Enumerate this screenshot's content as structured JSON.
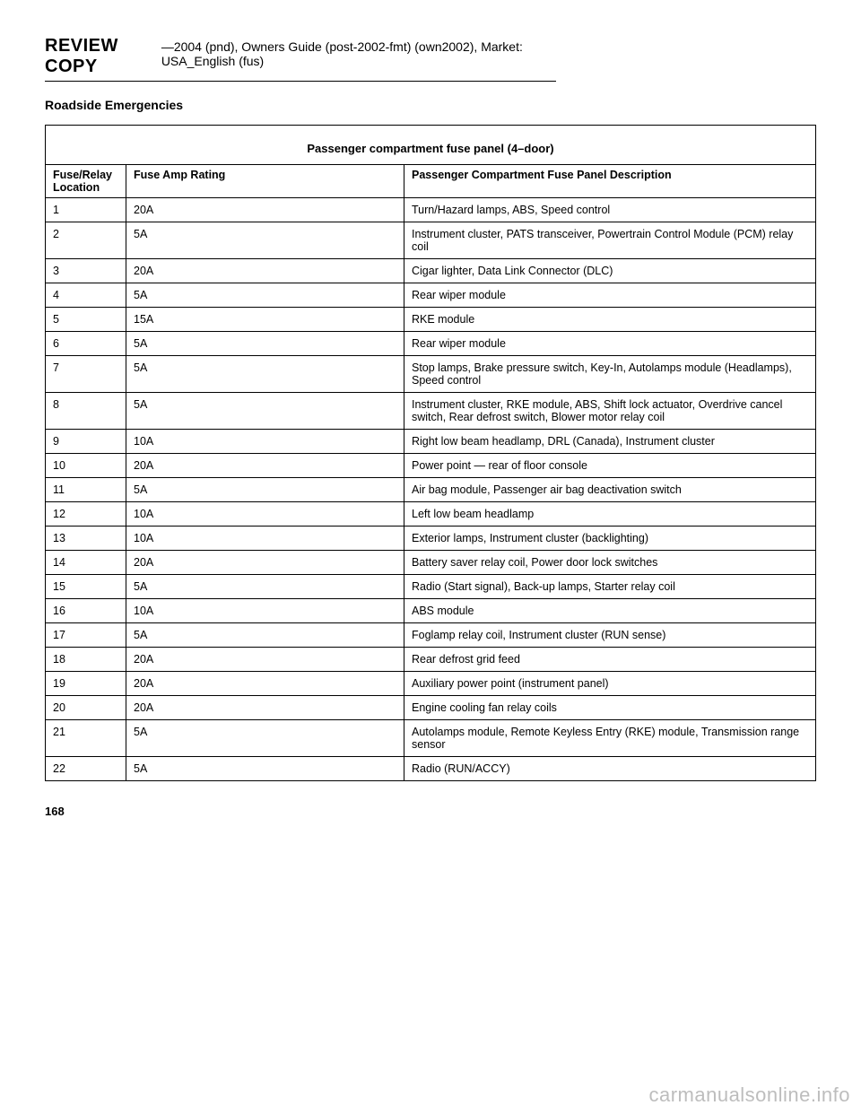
{
  "header": {
    "brand": "REVIEW COPY",
    "sub": "—2004 (pnd), Owners Guide (post-2002-fmt) (own2002), Market: USA_English (fus)"
  },
  "section_title": "Roadside Emergencies",
  "table": {
    "title": "Passenger compartment fuse panel (4–door)",
    "columns": [
      "Fuse/Relay Location",
      "Fuse Amp Rating",
      "Passenger Compartment Fuse Panel Description"
    ],
    "col_widths": [
      "90px",
      "310px",
      "auto"
    ],
    "rows": [
      [
        "1",
        "20A",
        "Turn/Hazard lamps, ABS, Speed control"
      ],
      [
        "2",
        "5A",
        "Instrument cluster, PATS transceiver, Powertrain Control Module (PCM) relay coil"
      ],
      [
        "3",
        "20A",
        "Cigar lighter, Data Link Connector (DLC)"
      ],
      [
        "4",
        "5A",
        "Rear wiper module"
      ],
      [
        "5",
        "15A",
        "RKE module"
      ],
      [
        "6",
        "5A",
        "Rear wiper module"
      ],
      [
        "7",
        "5A",
        "Stop lamps, Brake pressure switch, Key-In, Autolamps module (Headlamps), Speed control"
      ],
      [
        "8",
        "5A",
        "Instrument cluster, RKE module, ABS, Shift lock actuator, Overdrive cancel switch, Rear defrost switch, Blower motor relay coil"
      ],
      [
        "9",
        "10A",
        "Right low beam headlamp, DRL (Canada), Instrument cluster"
      ],
      [
        "10",
        "20A",
        "Power point — rear of floor console"
      ],
      [
        "11",
        "5A",
        "Air bag module, Passenger air bag deactivation switch"
      ],
      [
        "12",
        "10A",
        "Left low beam headlamp"
      ],
      [
        "13",
        "10A",
        "Exterior lamps, Instrument cluster (backlighting)"
      ],
      [
        "14",
        "20A",
        "Battery saver relay coil, Power door lock switches"
      ],
      [
        "15",
        "5A",
        "Radio (Start signal), Back-up lamps, Starter relay coil"
      ],
      [
        "16",
        "10A",
        "ABS module"
      ],
      [
        "17",
        "5A",
        "Foglamp relay coil, Instrument cluster (RUN sense)"
      ],
      [
        "18",
        "20A",
        "Rear defrost grid feed"
      ],
      [
        "19",
        "20A",
        "Auxiliary power point (instrument panel)"
      ],
      [
        "20",
        "20A",
        "Engine cooling fan relay coils"
      ],
      [
        "21",
        "5A",
        "Autolamps module, Remote Keyless Entry (RKE) module, Transmission range sensor"
      ],
      [
        "22",
        "5A",
        "Radio (RUN/ACCY)"
      ]
    ]
  },
  "page_number": "168",
  "watermark": "carmanualsonline.info"
}
